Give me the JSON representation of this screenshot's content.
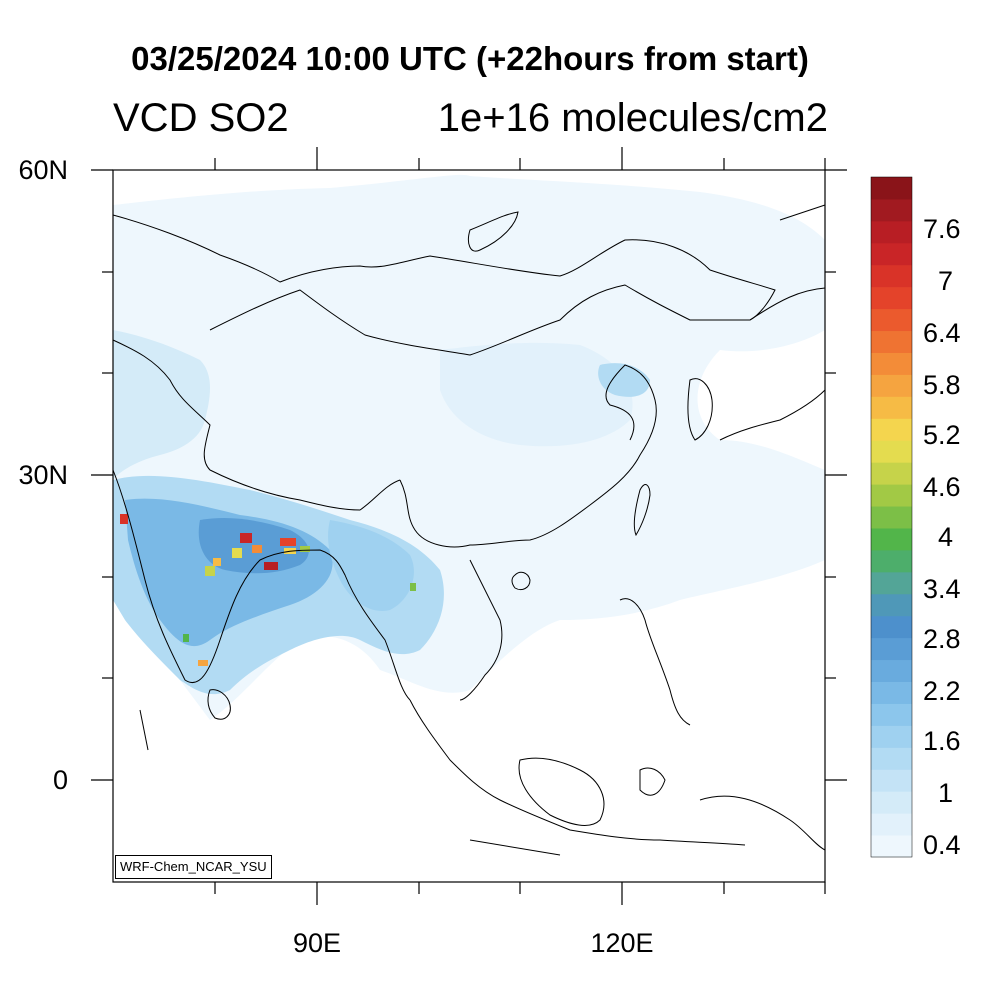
{
  "header": {
    "title": "03/25/2024 10:00 UTC (+22hours from start)",
    "variable": "VCD SO2",
    "units": "1e+16 molecules/cm2"
  },
  "map": {
    "lat_ticks": [
      {
        "label": "60N",
        "value": 60
      },
      {
        "label": "30N",
        "value": 30
      },
      {
        "label": "0",
        "value": 0
      }
    ],
    "lon_ticks": [
      {
        "label": "90E",
        "value": 90
      },
      {
        "label": "120E",
        "value": 120
      }
    ],
    "lat_range": [
      -10,
      60
    ],
    "lon_range": [
      70,
      140
    ],
    "credit": "WRF-Chem_NCAR_YSU"
  },
  "colorbar": {
    "labels": [
      "7.6",
      "7",
      "6.4",
      "5.8",
      "5.2",
      "4.6",
      "4",
      "3.4",
      "2.8",
      "2.2",
      "1.6",
      "1",
      "0.4"
    ],
    "colors": [
      "#eef7fd",
      "#e2f1fb",
      "#d4ebf8",
      "#c4e3f6",
      "#b2dbf3",
      "#9fd1f0",
      "#8cc6ec",
      "#7ab9e6",
      "#69abde",
      "#5a9dd5",
      "#4d90cc",
      "#4f98b8",
      "#53a597",
      "#4dae6b",
      "#52b54a",
      "#7cbf47",
      "#a2c945",
      "#c6d34a",
      "#e4dc4f",
      "#f4d54e",
      "#f6bb45",
      "#f5a440",
      "#f38c38",
      "#ef7332",
      "#eb5a2d",
      "#e4432a",
      "#d93328",
      "#c92527",
      "#b81e24",
      "#a11a20",
      "#8a1419"
    ],
    "range": [
      0.1,
      8.0
    ]
  }
}
